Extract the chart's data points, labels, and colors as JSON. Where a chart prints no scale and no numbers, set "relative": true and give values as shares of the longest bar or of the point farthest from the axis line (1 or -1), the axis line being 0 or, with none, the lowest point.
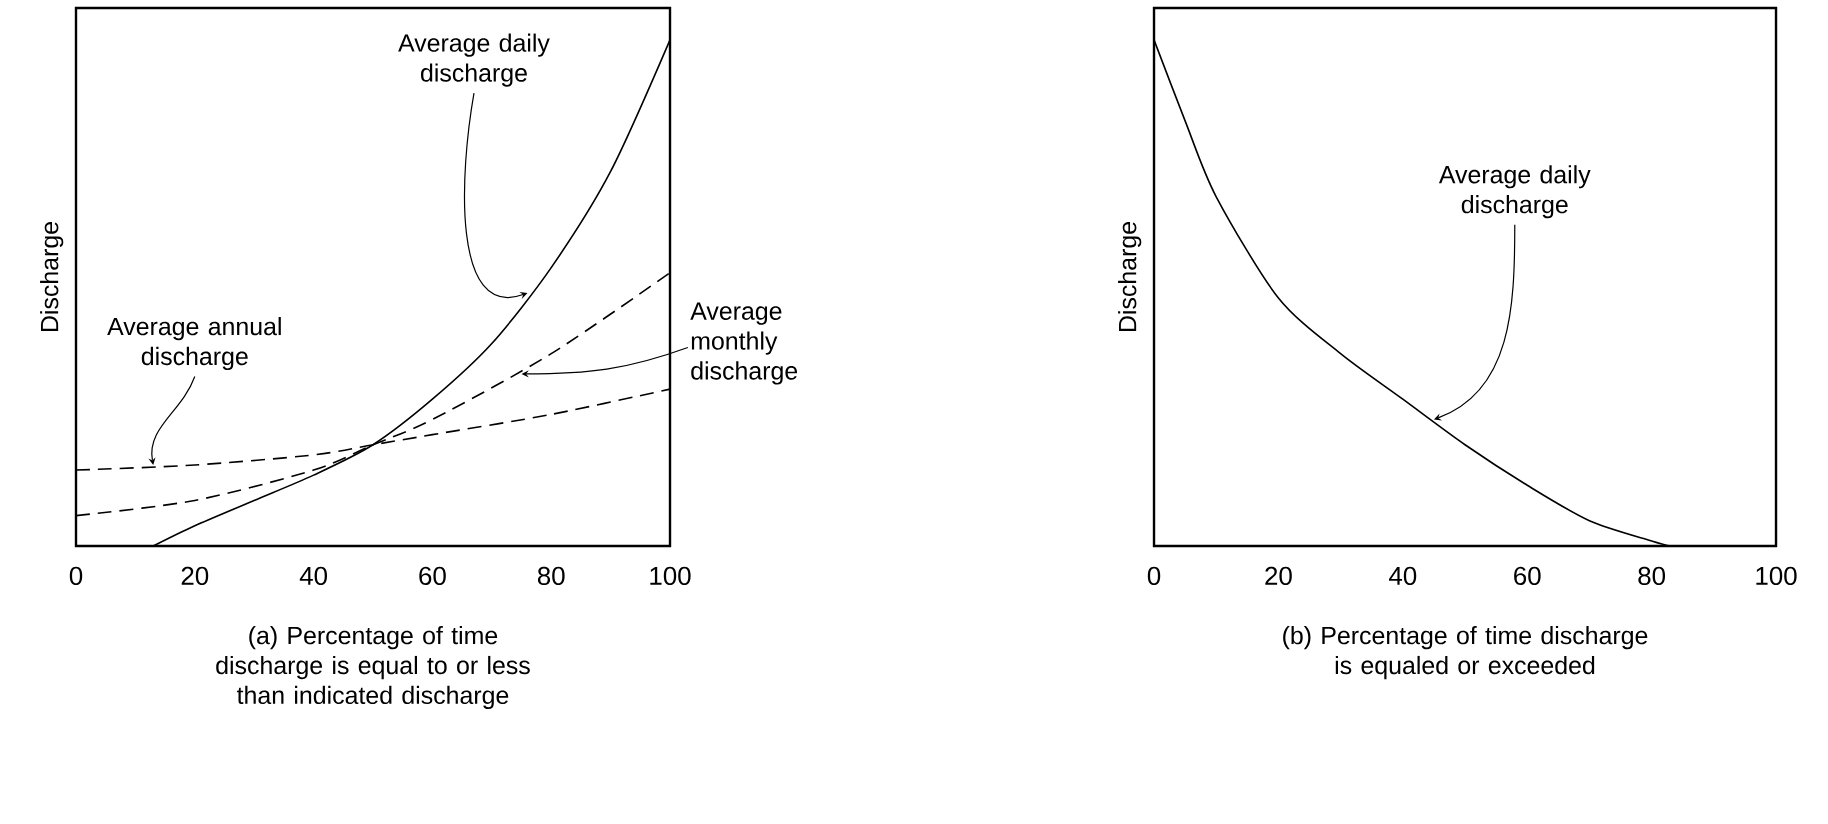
{
  "chart_data": [
    {
      "type": "line",
      "relative": true,
      "xlabel": "(a) Percentage of time discharge is equal to or less than indicated discharge",
      "ylabel": "Discharge",
      "xlim": [
        0,
        100
      ],
      "xticks": [
        0,
        20,
        40,
        60,
        80,
        100
      ],
      "grid": false,
      "series": [
        {
          "color": "#000000",
          "line_style": "solid",
          "x": [
            13,
            20,
            30,
            40,
            50,
            60,
            70,
            80,
            90,
            100
          ],
          "values": [
            0,
            0.04,
            0.09,
            0.14,
            0.2,
            0.29,
            0.4,
            0.55,
            0.74,
            1
          ]
        },
        {
          "color": "#000000",
          "line_style": "dashed",
          "x": [
            0,
            20,
            40,
            50,
            60,
            80,
            100
          ],
          "values": [
            0.06,
            0.09,
            0.15,
            0.2,
            0.25,
            0.38,
            0.54
          ]
        },
        {
          "color": "#000000",
          "line_style": "dashed",
          "x": [
            0,
            20,
            40,
            50,
            60,
            80,
            100
          ],
          "values": [
            0.15,
            0.16,
            0.18,
            0.2,
            0.22,
            0.26,
            0.31
          ]
        }
      ],
      "annotations": [
        {
          "text": "Average daily discharge",
          "x": 76,
          "y": 0.5
        },
        {
          "text": "Average annual discharge",
          "x": 13,
          "y": 0.16
        },
        {
          "text": "Average monthly discharge",
          "x": 75,
          "y": 0.34
        }
      ]
    },
    {
      "type": "line",
      "relative": true,
      "xlabel": "(b) Percentage of time discharge is equaled or exceeded",
      "ylabel": "Discharge",
      "xlim": [
        0,
        100
      ],
      "xticks": [
        0,
        20,
        40,
        60,
        80,
        100
      ],
      "grid": false,
      "series": [
        {
          "color": "#000000",
          "line_style": "solid",
          "x": [
            0,
            5,
            10,
            20,
            30,
            40,
            50,
            60,
            70,
            80,
            83
          ],
          "values": [
            1,
            0.84,
            0.69,
            0.49,
            0.38,
            0.29,
            0.2,
            0.12,
            0.05,
            0.01,
            0
          ]
        }
      ],
      "annotations": [
        {
          "text": "Average daily discharge",
          "x": 45,
          "y": 0.25
        }
      ]
    }
  ]
}
